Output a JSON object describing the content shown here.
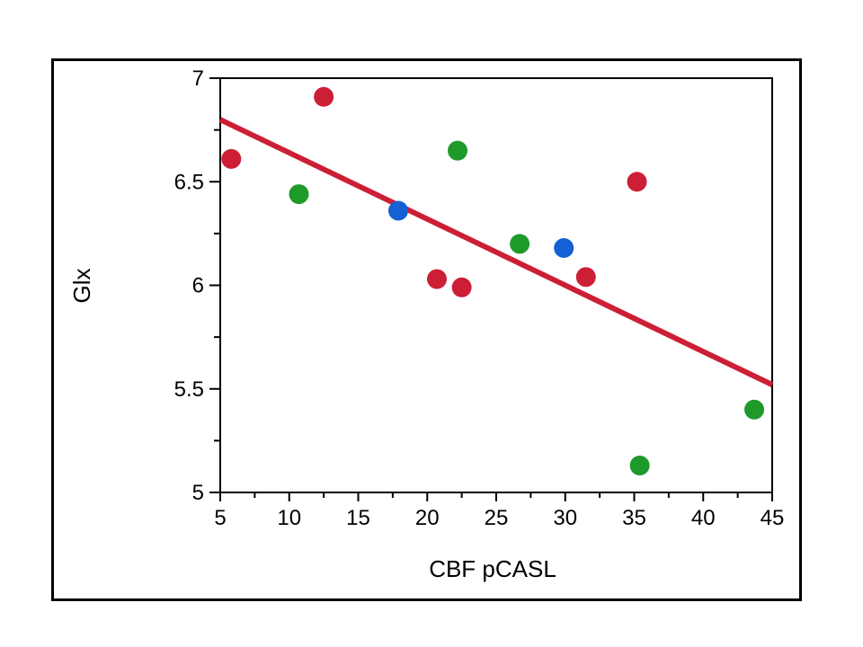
{
  "chart_data": {
    "type": "scatter",
    "title": "",
    "xlabel": "CBF pCASL",
    "ylabel": "Glx",
    "xlim": [
      5,
      45
    ],
    "ylim": [
      5,
      7
    ],
    "xticks": [
      5,
      10,
      15,
      20,
      25,
      30,
      35,
      40,
      45
    ],
    "yticks": [
      5,
      5.5,
      6,
      6.5,
      7
    ],
    "grid": false,
    "legend": "none",
    "colors": {
      "red": "#cc1f36",
      "green": "#1e9a2a",
      "blue": "#1560d4",
      "line": "#cc1f36"
    },
    "series": [
      {
        "color": "red",
        "points": [
          {
            "x": 5.8,
            "y": 6.61
          },
          {
            "x": 12.5,
            "y": 6.91
          },
          {
            "x": 20.7,
            "y": 6.03
          },
          {
            "x": 22.5,
            "y": 5.99
          },
          {
            "x": 31.5,
            "y": 6.04
          },
          {
            "x": 35.2,
            "y": 6.5
          }
        ]
      },
      {
        "color": "green",
        "points": [
          {
            "x": 10.7,
            "y": 6.44
          },
          {
            "x": 22.2,
            "y": 6.65
          },
          {
            "x": 26.7,
            "y": 6.2
          },
          {
            "x": 35.4,
            "y": 5.13
          },
          {
            "x": 43.7,
            "y": 5.4
          }
        ]
      },
      {
        "color": "blue",
        "points": [
          {
            "x": 17.9,
            "y": 6.36
          },
          {
            "x": 29.9,
            "y": 6.18
          }
        ]
      }
    ],
    "fit_line": {
      "x1": 5,
      "y1": 6.8,
      "x2": 45,
      "y2": 5.52
    }
  }
}
